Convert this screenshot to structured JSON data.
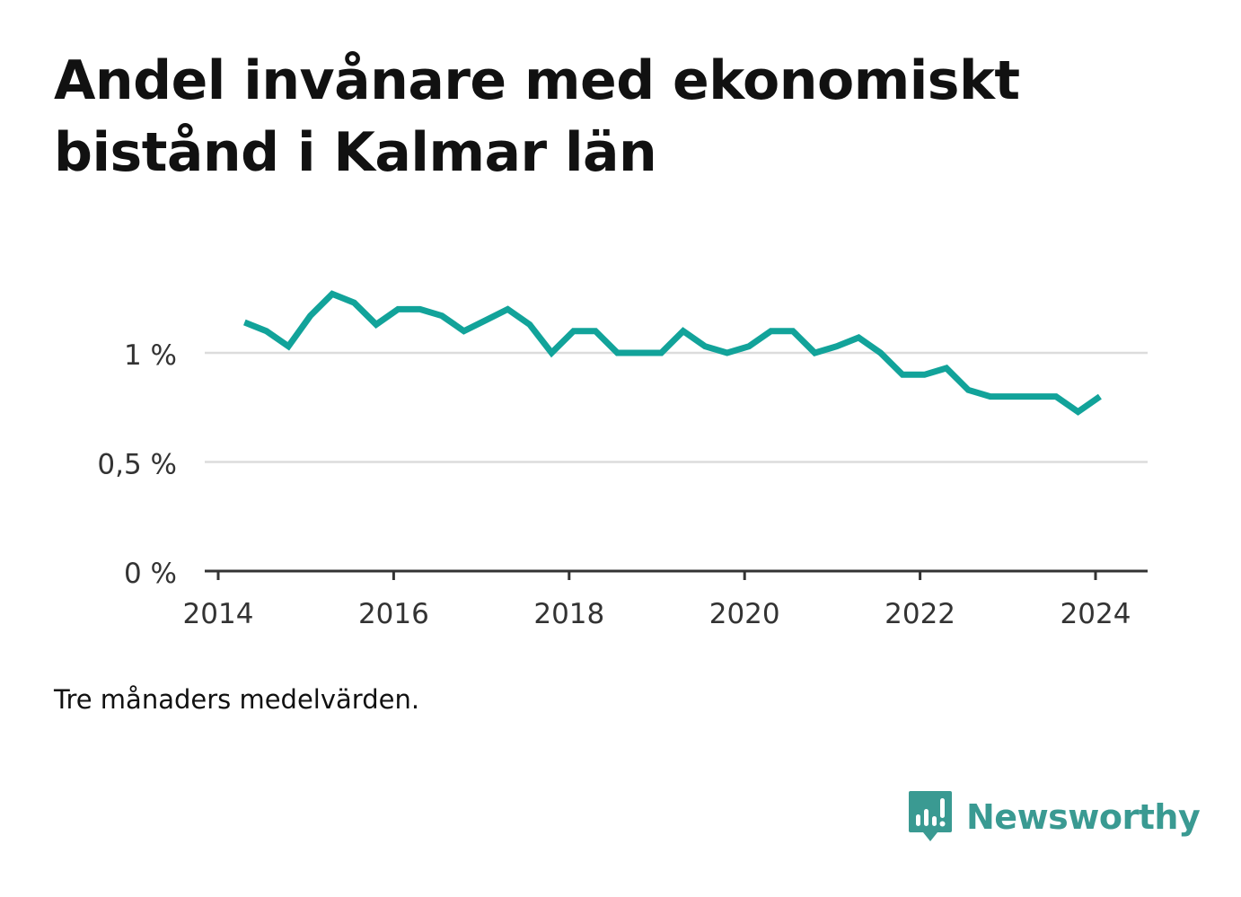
{
  "title": "Andel invånare med ekonomiskt bistånd i Kalmar län",
  "note": "Tre månaders medelvärden.",
  "logo": {
    "text": "Newsworthy",
    "icon": "bar-chart-speech-bubble-icon",
    "color": "#3a9a92"
  },
  "chart_data": {
    "type": "line",
    "line_color": "#12a39a",
    "x_ticks": [
      2014,
      2016,
      2018,
      2020,
      2022,
      2024
    ],
    "xlim": [
      2014,
      2024.4
    ],
    "y_ticks": [
      {
        "value": 0,
        "label": "0 %"
      },
      {
        "value": 0.5,
        "label": "0,5 %"
      },
      {
        "value": 1,
        "label": "1 %"
      }
    ],
    "ylim": [
      0,
      1.3
    ],
    "grid": true,
    "series": [
      {
        "x": [
          2014.3,
          2014.55,
          2014.8,
          2015.05,
          2015.3,
          2015.55,
          2015.8,
          2016.05,
          2016.3,
          2016.55,
          2016.8,
          2017.05,
          2017.3,
          2017.55,
          2017.8,
          2018.05,
          2018.3,
          2018.55,
          2018.8,
          2019.05,
          2019.3,
          2019.55,
          2019.8,
          2020.05,
          2020.3,
          2020.55,
          2020.8,
          2021.05,
          2021.3,
          2021.55,
          2021.8,
          2022.05,
          2022.3,
          2022.55,
          2022.8,
          2023.05,
          2023.3,
          2023.55,
          2023.8,
          2024.05
        ],
        "y": [
          1.14,
          1.1,
          1.03,
          1.17,
          1.27,
          1.23,
          1.13,
          1.2,
          1.2,
          1.17,
          1.1,
          1.15,
          1.2,
          1.13,
          1.0,
          1.1,
          1.1,
          1.0,
          1.0,
          1.0,
          1.1,
          1.03,
          1.0,
          1.03,
          1.1,
          1.1,
          1.0,
          1.03,
          1.07,
          1.0,
          0.9,
          0.9,
          0.93,
          0.83,
          0.8,
          0.8,
          0.8,
          0.8,
          0.73,
          0.8
        ]
      }
    ]
  }
}
